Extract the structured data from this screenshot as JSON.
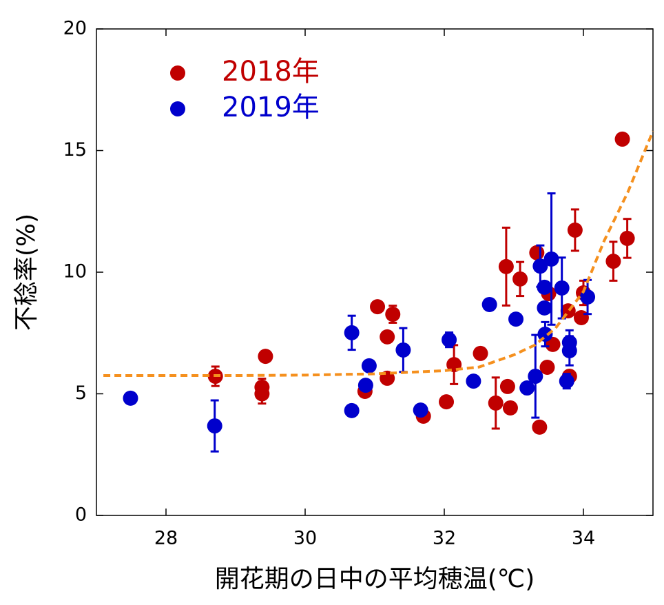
{
  "chart_data": {
    "type": "scatter",
    "x_label": "開花期の日中の平均穂温(℃)",
    "y_label": "不稔率(%)",
    "xlim": [
      27,
      35
    ],
    "xticks": [
      28,
      30,
      32,
      34
    ],
    "ylim": [
      0,
      20
    ],
    "yticks": [
      0,
      5,
      10,
      15,
      20
    ],
    "grid": false,
    "legend": "upper left",
    "series": [
      {
        "name": "2018年",
        "color": "#c00000",
        "x": [
          28.71,
          29.38,
          29.38,
          29.43,
          30.86,
          31.04,
          31.18,
          31.18,
          31.26,
          31.7,
          32.03,
          32.14,
          32.52,
          32.74,
          32.89,
          32.91,
          32.95,
          33.09,
          33.33,
          33.37,
          33.48,
          33.5,
          33.56,
          33.78,
          33.8,
          33.88,
          33.97,
          34.0,
          34.43,
          34.56,
          34.63
        ],
        "values": [
          5.72,
          5.27,
          5.0,
          6.54,
          5.1,
          8.58,
          7.34,
          5.64,
          8.27,
          4.08,
          4.67,
          6.2,
          6.66,
          4.62,
          10.23,
          5.3,
          4.42,
          9.72,
          10.8,
          3.63,
          6.09,
          9.12,
          7.03,
          8.41,
          5.72,
          11.73,
          8.13,
          9.15,
          10.45,
          15.47,
          11.39
        ],
        "errors": [
          0.4,
          0.35,
          0.4,
          null,
          null,
          null,
          null,
          null,
          0.35,
          null,
          null,
          0.8,
          null,
          1.05,
          1.6,
          null,
          null,
          0.7,
          null,
          null,
          null,
          null,
          null,
          null,
          null,
          0.85,
          null,
          0.5,
          0.8,
          null,
          0.8
        ]
      },
      {
        "name": "2019年",
        "color": "#0000cc",
        "x": [
          27.49,
          28.7,
          30.67,
          30.67,
          30.87,
          30.92,
          31.41,
          31.66,
          32.07,
          32.42,
          32.65,
          33.03,
          33.19,
          33.31,
          33.38,
          33.44,
          33.44,
          33.45,
          33.54,
          33.69,
          33.76,
          33.8,
          33.8,
          34.06
        ],
        "values": [
          4.82,
          3.68,
          7.51,
          4.31,
          5.35,
          6.15,
          6.8,
          4.33,
          7.22,
          5.52,
          8.67,
          8.07,
          5.24,
          5.72,
          10.25,
          9.38,
          8.53,
          7.45,
          10.54,
          9.35,
          5.52,
          7.11,
          6.77,
          8.98
        ],
        "errors": [
          null,
          1.05,
          0.7,
          null,
          null,
          null,
          0.9,
          null,
          0.3,
          null,
          null,
          null,
          null,
          1.7,
          0.85,
          null,
          null,
          0.5,
          2.7,
          1.25,
          0.3,
          0.5,
          0.6,
          0.7
        ]
      }
    ],
    "fit": {
      "color": "#f5901e",
      "dashed": true,
      "x": [
        27.1,
        29,
        30,
        31,
        32,
        32.5,
        33,
        33.3,
        33.6,
        34,
        34.3,
        34.64,
        35
      ],
      "values": [
        5.75,
        5.75,
        5.77,
        5.82,
        5.95,
        6.1,
        6.6,
        7.0,
        7.7,
        9.2,
        11.3,
        13.3,
        15.8
      ]
    }
  }
}
